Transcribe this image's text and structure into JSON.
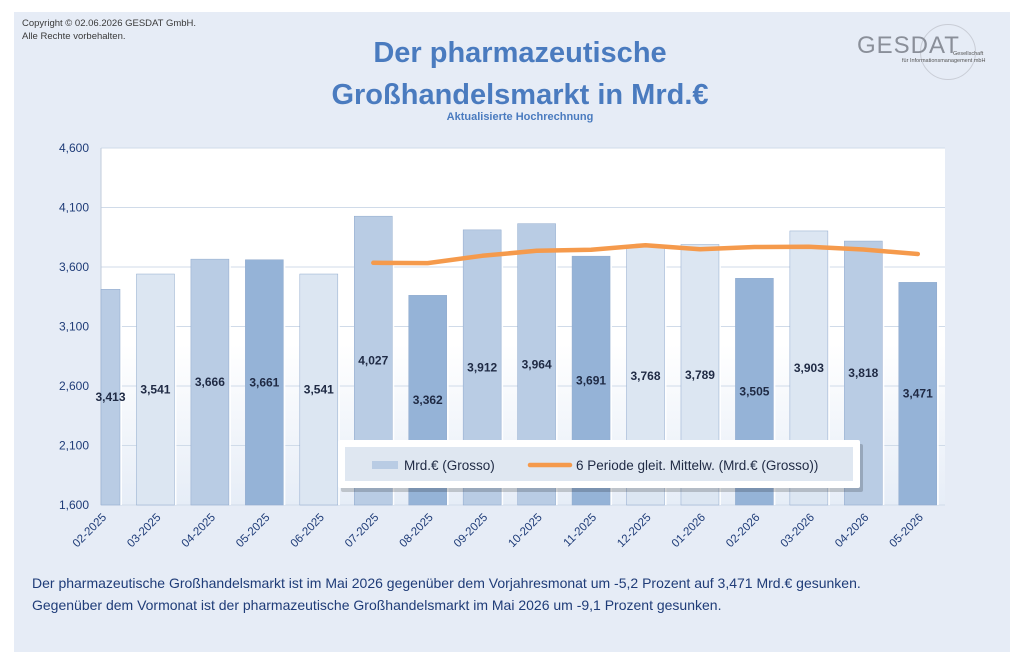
{
  "copyright": [
    "Copyright © 02.06.2026 GESDAT GmbH.",
    "Alle Rechte vorbehalten."
  ],
  "logo": {
    "word": "GESDAT",
    "tagline_1": "Gesellschaft",
    "tagline_2": "für Informationsmanagement mbH"
  },
  "footnote": [
    "Der pharmazeutische Großhandelsmarkt ist im Mai 2026 gegenüber dem Vorjahresmonat um -5,2 Prozent auf 3,471 Mrd.€ gesunken.",
    "Gegenüber dem Vormonat ist der pharmazeutische Großhandelsmarkt im Mai 2026 um -9,1 Prozent gesunken."
  ],
  "chart_data": {
    "type": "bar",
    "title_lines": [
      "Der pharmazeutische",
      "Großhandelsmarkt in Mrd.€"
    ],
    "subtitle": "Aktualisierte Hochrechnung",
    "categories": [
      "02-2025",
      "03-2025",
      "04-2025",
      "05-2025",
      "06-2025",
      "07-2025",
      "08-2025",
      "09-2025",
      "10-2025",
      "11-2025",
      "12-2025",
      "01-2026",
      "02-2026",
      "03-2026",
      "04-2026",
      "05-2026"
    ],
    "series": [
      {
        "name": "Mrd.€ (Grosso)",
        "type": "bar",
        "values": [
          3.413,
          3.541,
          3.666,
          3.661,
          3.541,
          4.027,
          3.362,
          3.912,
          3.964,
          3.691,
          3.768,
          3.789,
          3.505,
          3.903,
          3.818,
          3.471
        ],
        "labels": [
          "3,413",
          "3,541",
          "3,666",
          "3,661",
          "3,541",
          "4,027",
          "3,362",
          "3,912",
          "3,964",
          "3,691",
          "3,768",
          "3,789",
          "3,505",
          "3,903",
          "3,818",
          "3,471"
        ],
        "shade": [
          "mid",
          "light",
          "mid",
          "dark",
          "light",
          "mid",
          "dark",
          "mid",
          "mid",
          "dark",
          "light",
          "light",
          "dark",
          "light",
          "mid",
          "dark"
        ]
      },
      {
        "name": "6 Periode gleit. Mittelw. (Mrd.€ (Grosso))",
        "type": "line",
        "values": [
          null,
          null,
          null,
          null,
          null,
          3.635,
          3.633,
          3.694,
          3.736,
          3.745,
          3.783,
          3.749,
          3.768,
          3.77,
          3.747,
          3.709
        ]
      }
    ],
    "yticks": [
      "1,600",
      "2,100",
      "2,600",
      "3,100",
      "3,600",
      "4,100",
      "4,600"
    ],
    "ylim": [
      1.6,
      4.6
    ],
    "grid": true,
    "legend_position": "bottom-right inside",
    "colors": {
      "light": "#dce6f2",
      "mid": "#b9cce4",
      "dark": "#95b3d7",
      "line": "#f59a4c",
      "title": "#4a7bbf",
      "axis_text": "#1f3c78"
    }
  }
}
